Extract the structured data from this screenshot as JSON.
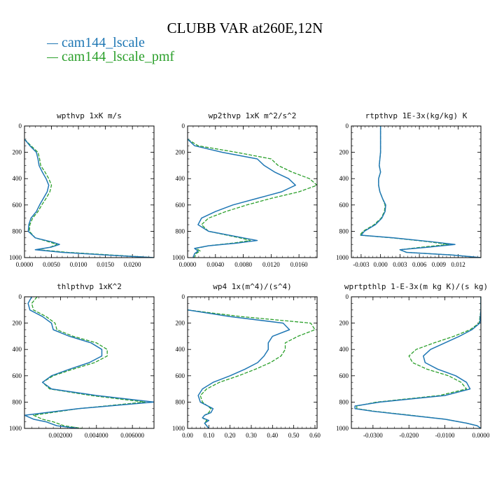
{
  "title": "CLUBB VAR at260E,12N",
  "legend": [
    {
      "name": "cam144_lscale",
      "color": "#1f77b4",
      "style": "solid"
    },
    {
      "name": "cam144_lscale_pmf",
      "color": "#2ca02c",
      "style": "dashed"
    }
  ],
  "chart_data": [
    {
      "type": "line",
      "title": "wpthvp   1xK m/s",
      "xlim": [
        0,
        0.024
      ],
      "ylim": [
        0,
        1000
      ],
      "y_inverted": true,
      "xticks": [
        "0.0000",
        "0.0050",
        "0.0100",
        "0.0150",
        "0.0200"
      ],
      "xtick_values": [
        0,
        0.005,
        0.01,
        0.015,
        0.02
      ],
      "yticks": [
        "0",
        "200",
        "400",
        "600",
        "800",
        "1000"
      ],
      "y": [
        100,
        150,
        200,
        250,
        300,
        350,
        400,
        450,
        500,
        550,
        600,
        650,
        700,
        750,
        800,
        850,
        880,
        900,
        920,
        940,
        960,
        980,
        1000
      ],
      "series": [
        {
          "name": "cam144_lscale",
          "values": [
            0.0,
            0.001,
            0.0022,
            0.0025,
            0.0027,
            0.0033,
            0.004,
            0.0045,
            0.0042,
            0.0035,
            0.0028,
            0.0022,
            0.0012,
            0.0008,
            0.0007,
            0.002,
            0.005,
            0.0065,
            0.005,
            0.002,
            0.007,
            0.015,
            0.024
          ]
        },
        {
          "name": "cam144_lscale_pmf",
          "values": [
            0.0,
            0.0012,
            0.0025,
            0.0028,
            0.003,
            0.0038,
            0.0045,
            0.005,
            0.0047,
            0.004,
            0.0032,
            0.0025,
            0.0015,
            0.001,
            0.0009,
            0.002,
            0.0045,
            0.006,
            0.0048,
            0.0025,
            0.008,
            0.016,
            0.024
          ]
        }
      ]
    },
    {
      "type": "line",
      "title": "wp2thvp   1xK m^2/s^2",
      "xlim": [
        0,
        0.0186
      ],
      "ylim": [
        0,
        1000
      ],
      "y_inverted": true,
      "xticks": [
        "0.0000",
        "0.0040",
        "0.0080",
        "0.0120",
        "0.0160"
      ],
      "xtick_values": [
        0,
        0.004,
        0.008,
        0.012,
        0.016
      ],
      "yticks": [
        "0",
        "200",
        "400",
        "600",
        "800",
        "1000"
      ],
      "y": [
        100,
        150,
        200,
        250,
        300,
        350,
        400,
        450,
        500,
        550,
        600,
        650,
        700,
        750,
        800,
        850,
        870,
        890,
        910,
        930,
        950,
        970,
        1000
      ],
      "series": [
        {
          "name": "cam144_lscale",
          "values": [
            0.0,
            0.001,
            0.005,
            0.01,
            0.011,
            0.0125,
            0.0145,
            0.0155,
            0.0135,
            0.01,
            0.0065,
            0.004,
            0.002,
            0.0015,
            0.003,
            0.008,
            0.01,
            0.007,
            0.003,
            0.001,
            0.0015,
            0.001,
            0.0008
          ]
        },
        {
          "name": "cam144_lscale_pmf",
          "values": [
            0.0,
            0.0015,
            0.007,
            0.012,
            0.013,
            0.015,
            0.0175,
            0.0186,
            0.016,
            0.012,
            0.0085,
            0.0055,
            0.003,
            0.002,
            0.003,
            0.0075,
            0.009,
            0.0065,
            0.003,
            0.0012,
            0.0018,
            0.0012,
            0.001
          ]
        }
      ]
    },
    {
      "type": "line",
      "title": "rtpthvp   1E-3x(kg/kg) K",
      "xlim": [
        -0.0045,
        0.0155
      ],
      "ylim": [
        0,
        1000
      ],
      "y_inverted": true,
      "xticks": [
        "-0.003",
        "0.000",
        "0.003",
        "0.006",
        "0.009",
        "0.012"
      ],
      "xtick_values": [
        -0.003,
        0,
        0.003,
        0.006,
        0.009,
        0.012
      ],
      "yticks": [
        "0",
        "200",
        "400",
        "600",
        "800",
        "1000"
      ],
      "y": [
        0,
        100,
        200,
        300,
        350,
        400,
        450,
        500,
        550,
        600,
        650,
        700,
        750,
        800,
        830,
        850,
        880,
        900,
        920,
        940,
        960,
        980,
        1000
      ],
      "series": [
        {
          "name": "cam144_lscale",
          "values": [
            0.0,
            0.0,
            0.0,
            -0.0002,
            0.0,
            -0.0003,
            -0.0003,
            -0.0001,
            0.0003,
            0.0008,
            0.0007,
            0.0002,
            -0.0008,
            -0.0025,
            -0.003,
            0.002,
            0.008,
            0.0115,
            0.0075,
            0.003,
            0.004,
            0.011,
            0.0155
          ]
        },
        {
          "name": "cam144_lscale_pmf",
          "values": [
            0.0,
            0.0,
            0.0,
            -0.0002,
            0.0,
            -0.0003,
            -0.0003,
            -0.0001,
            0.0003,
            0.0007,
            0.0006,
            0.0001,
            -0.001,
            -0.0027,
            -0.0032,
            0.0018,
            0.0075,
            0.0105,
            0.0065,
            0.003,
            0.004,
            0.011,
            0.0155
          ]
        }
      ]
    },
    {
      "type": "line",
      "title": "thlpthvp   1xK^2",
      "xlim": [
        0,
        0.0072
      ],
      "ylim": [
        0,
        1000
      ],
      "y_inverted": true,
      "xticks": [
        "0.002000",
        "0.004000",
        "0.006000"
      ],
      "xtick_values": [
        0.002,
        0.004,
        0.006
      ],
      "yticks": [
        "0",
        "200",
        "400",
        "600",
        "800",
        "1000"
      ],
      "y": [
        0,
        50,
        100,
        150,
        200,
        250,
        300,
        350,
        400,
        450,
        500,
        550,
        600,
        650,
        700,
        750,
        800,
        850,
        900,
        930,
        950,
        980,
        1000
      ],
      "series": [
        {
          "name": "cam144_lscale",
          "values": [
            0.0004,
            0.0002,
            0.0003,
            0.001,
            0.0015,
            0.0016,
            0.0025,
            0.0037,
            0.0043,
            0.0043,
            0.0036,
            0.0025,
            0.0015,
            0.001,
            0.0015,
            0.004,
            0.0072,
            0.003,
            0.0,
            0.0005,
            0.0012,
            0.0018,
            0.003
          ]
        },
        {
          "name": "cam144_lscale_pmf",
          "values": [
            0.0007,
            0.0004,
            0.0005,
            0.0012,
            0.0017,
            0.0018,
            0.0027,
            0.004,
            0.0046,
            0.0046,
            0.0039,
            0.0027,
            0.0016,
            0.001,
            0.0014,
            0.0037,
            0.0067,
            0.003,
            0.0005,
            0.001,
            0.0016,
            0.0022,
            0.0032
          ]
        }
      ]
    },
    {
      "type": "line",
      "title": "wp4   1x(m^4)/(s^4)",
      "xlim": [
        0,
        0.61
      ],
      "ylim": [
        0,
        1000
      ],
      "y_inverted": true,
      "xticks": [
        "0.00",
        "0.10",
        "0.20",
        "0.30",
        "0.40",
        "0.50",
        "0.60"
      ],
      "xtick_values": [
        0,
        0.1,
        0.2,
        0.3,
        0.4,
        0.5,
        0.6
      ],
      "yticks": [
        "0",
        "200",
        "400",
        "600",
        "800",
        "1000"
      ],
      "y": [
        100,
        150,
        200,
        250,
        300,
        350,
        400,
        450,
        500,
        550,
        600,
        650,
        700,
        750,
        800,
        850,
        880,
        900,
        920,
        940,
        960,
        980,
        1000
      ],
      "series": [
        {
          "name": "cam144_lscale",
          "values": [
            0.0,
            0.2,
            0.45,
            0.48,
            0.4,
            0.38,
            0.38,
            0.36,
            0.33,
            0.27,
            0.2,
            0.12,
            0.07,
            0.05,
            0.06,
            0.12,
            0.11,
            0.08,
            0.07,
            0.1,
            0.08,
            0.09,
            0.1
          ]
        },
        {
          "name": "cam144_lscale_pmf",
          "values": [
            0.0,
            0.25,
            0.58,
            0.6,
            0.52,
            0.46,
            0.46,
            0.44,
            0.39,
            0.32,
            0.24,
            0.15,
            0.09,
            0.06,
            0.07,
            0.11,
            0.1,
            0.08,
            0.07,
            0.09,
            0.08,
            0.09,
            0.1
          ]
        }
      ]
    },
    {
      "type": "line",
      "title": "wprtpthlp   1-E-3x(m kg K)/(s kg)",
      "xlim": [
        -0.036,
        0.0
      ],
      "ylim": [
        0,
        1000
      ],
      "y_inverted": true,
      "xticks": [
        "-0.0300",
        "-0.0200",
        "-0.0100",
        "0.0000"
      ],
      "xtick_values": [
        -0.03,
        -0.02,
        -0.01,
        0.0
      ],
      "yticks": [
        "0",
        "200",
        "400",
        "600",
        "800",
        "1000"
      ],
      "y": [
        0,
        100,
        200,
        250,
        300,
        350,
        400,
        450,
        500,
        550,
        600,
        650,
        700,
        750,
        800,
        830,
        850,
        870,
        900,
        930,
        960,
        980,
        1000
      ],
      "series": [
        {
          "name": "cam144_lscale",
          "values": [
            0.0,
            0.0,
            -0.0003,
            -0.0025,
            -0.006,
            -0.01,
            -0.014,
            -0.016,
            -0.0155,
            -0.012,
            -0.007,
            -0.004,
            -0.003,
            -0.01,
            -0.028,
            -0.035,
            -0.035,
            -0.03,
            -0.02,
            -0.01,
            -0.004,
            -0.001,
            0.0
          ]
        },
        {
          "name": "cam144_lscale_pmf",
          "values": [
            0.0,
            0.0,
            -0.0005,
            -0.003,
            -0.0075,
            -0.013,
            -0.018,
            -0.02,
            -0.019,
            -0.015,
            -0.009,
            -0.0055,
            -0.004,
            -0.0115,
            -0.029,
            -0.0345,
            -0.0345,
            -0.0295,
            -0.0195,
            -0.01,
            -0.004,
            -0.001,
            0.0
          ]
        }
      ]
    }
  ]
}
